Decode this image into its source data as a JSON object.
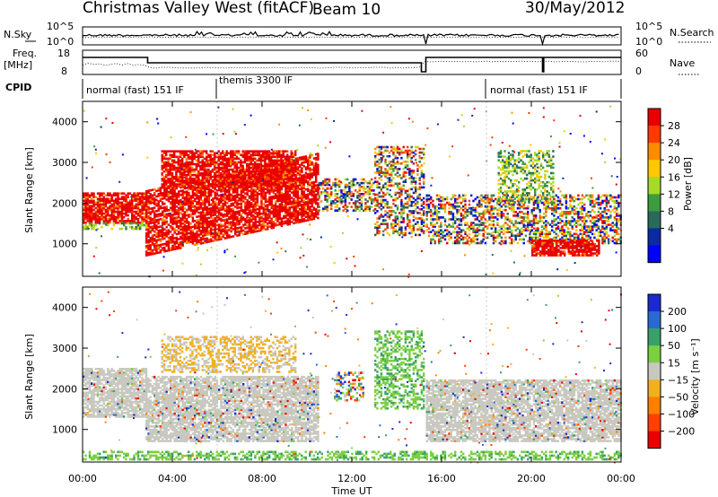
{
  "header": {
    "station": "Christmas Valley West (fitACF)",
    "beam": "Beam 10",
    "date": "30/May/2012"
  },
  "noise_panel": {
    "left_label": "N.Sky",
    "right_label": "N.Search",
    "left_ticks": [
      "10^5",
      "10^0"
    ],
    "right_ticks": [
      "10^5",
      "10^0"
    ]
  },
  "freq_panel": {
    "left_label_1": "Freq.",
    "left_label_2": "[MHz]",
    "right_label": "Nave",
    "left_ticks": [
      "18",
      "8"
    ],
    "right_ticks": [
      "60",
      "0"
    ]
  },
  "cpid": {
    "label": "CPID",
    "segments": [
      {
        "name": "normal (fast) 151 IF",
        "start_hour": 0,
        "end_hour": 6
      },
      {
        "name": "themis 3300 IF",
        "start_hour": 6,
        "end_hour": 18
      },
      {
        "name": "normal (fast) 151 IF",
        "start_hour": 18,
        "end_hour": 24
      }
    ]
  },
  "time_axis": {
    "title": "Time UT",
    "ticks": [
      "00:00",
      "04:00",
      "08:00",
      "12:00",
      "16:00",
      "20:00",
      "00:00"
    ]
  },
  "chart_data": [
    {
      "type": "heatmap",
      "name": "power",
      "ylabel": "Slant Range [km]",
      "yticks": [
        "1000",
        "2000",
        "3000",
        "4000"
      ],
      "ylim": [
        200,
        4500
      ],
      "xlim": [
        0,
        24
      ],
      "colorbar_label": "Power [dB]",
      "colorbar_ticks": [
        "28",
        "24",
        "20",
        "16",
        "12",
        "8",
        "4"
      ],
      "colorbar_colors": [
        "#e80000",
        "#ff3a00",
        "#ff8c00",
        "#ffc800",
        "#a6d92a",
        "#3e9c3e",
        "#2a6a5a",
        "#0a2aa0",
        "#0000ff"
      ],
      "bands": [
        {
          "t0": 0,
          "t1": 2.8,
          "r0": 1500,
          "r1": 2250,
          "level": "high"
        },
        {
          "t0": 0,
          "t1": 2.8,
          "r0": 1350,
          "r1": 1500,
          "level": "mid"
        },
        {
          "t0": 2.8,
          "t1": 10.5,
          "r0": 700,
          "r1": 2300,
          "level": "high",
          "slope": 120
        },
        {
          "t0": 3.5,
          "t1": 9.5,
          "r0": 2400,
          "r1": 3300,
          "level": "high"
        },
        {
          "t0": 10.5,
          "t1": 13,
          "r0": 1800,
          "r1": 2600,
          "level": "mixed"
        },
        {
          "t0": 13,
          "t1": 15.2,
          "r0": 1200,
          "r1": 3400,
          "level": "mixed"
        },
        {
          "t0": 15.3,
          "t1": 24,
          "r0": 1000,
          "r1": 2200,
          "level": "mixed"
        },
        {
          "t0": 20,
          "t1": 23,
          "r0": 700,
          "r1": 1100,
          "level": "high"
        },
        {
          "t0": 18.5,
          "t1": 21,
          "r0": 2000,
          "r1": 3300,
          "level": "mid"
        }
      ]
    },
    {
      "type": "heatmap",
      "name": "velocity",
      "ylabel": "Slant Range [km]",
      "yticks": [
        "1000",
        "2000",
        "3000",
        "4000"
      ],
      "ylim": [
        200,
        4500
      ],
      "xlim": [
        0,
        24
      ],
      "colorbar_label": "Velocity [m s⁻¹]",
      "colorbar_ticks": [
        "200",
        "100",
        "50",
        "15",
        "−15",
        "−50",
        "−100",
        "−200"
      ],
      "colorbar_colors": [
        "#1a2acc",
        "#2a6ad0",
        "#3aa06a",
        "#7ad040",
        "#c8c8c0",
        "#f0b020",
        "#ff8000",
        "#ff4000",
        "#e80000"
      ],
      "bands": [
        {
          "t0": 0,
          "t1": 2.8,
          "r0": 1300,
          "r1": 2500,
          "level": "ground"
        },
        {
          "t0": 2.8,
          "t1": 10.5,
          "r0": 700,
          "r1": 2300,
          "level": "ground"
        },
        {
          "t0": 3.5,
          "t1": 9.5,
          "r0": 2400,
          "r1": 3300,
          "level": "negative"
        },
        {
          "t0": 11.2,
          "t1": 12.5,
          "r0": 1700,
          "r1": 2400,
          "level": "mixed"
        },
        {
          "t0": 13,
          "t1": 15.2,
          "r0": 1500,
          "r1": 3400,
          "level": "positive"
        },
        {
          "t0": 15.3,
          "t1": 24,
          "r0": 700,
          "r1": 2200,
          "level": "ground"
        },
        {
          "t0": 0,
          "t1": 24,
          "r0": 250,
          "r1": 450,
          "level": "positive"
        }
      ]
    }
  ]
}
